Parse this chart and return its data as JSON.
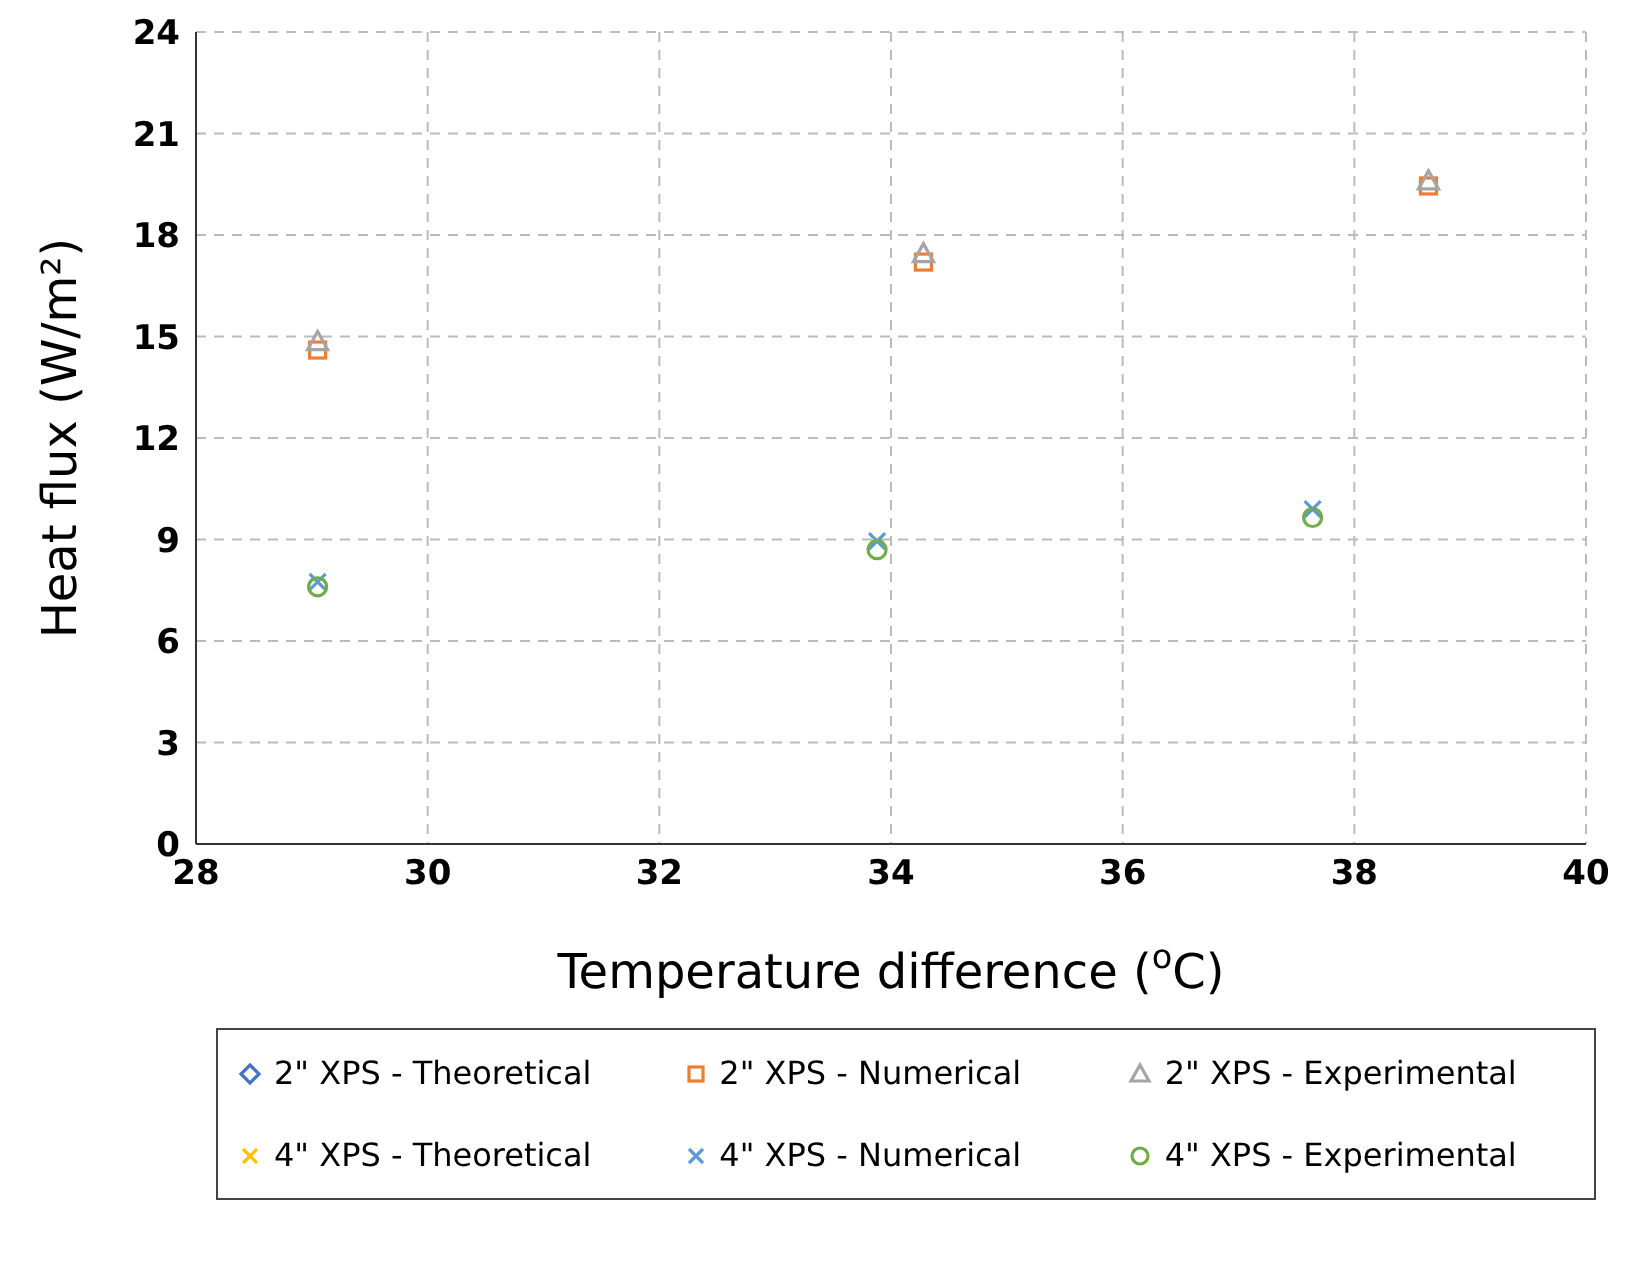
{
  "chart_data": {
    "type": "scatter",
    "xlabel": "Temperature difference ($^{o}$C)",
    "ylabel": "Heat flux (W/m²)",
    "xlim": [
      28,
      40
    ],
    "xticks": [
      28,
      30,
      32,
      34,
      36,
      38,
      40
    ],
    "ylim": [
      0,
      24
    ],
    "yticks": [
      0,
      3,
      6,
      9,
      12,
      15,
      18,
      21,
      24
    ],
    "grid": true,
    "legend": "bottom",
    "x": [
      29.05,
      34.28,
      38.64
    ],
    "series": [
      {
        "name": "2\" XPS - Theoretical",
        "color": "#4472c4",
        "marker": "diamond",
        "values": [
          null,
          null,
          null
        ]
      },
      {
        "name": "2\" XPS - Numerical",
        "color": "#ed7d31",
        "marker": "square",
        "values": [
          14.6,
          17.2,
          19.45
        ]
      },
      {
        "name": "2\" XPS - Experimental",
        "color": "#a5a5a5",
        "marker": "triangle",
        "values": [
          14.85,
          17.45,
          19.6
        ]
      },
      {
        "name": "4\" XPS - Theoretical",
        "color": "#ffc000",
        "marker": "cross",
        "values": [
          null,
          null,
          null
        ]
      },
      {
        "name": "4\" XPS - Numerical",
        "color": "#5b9bd5",
        "marker": "cross",
        "x": [
          29.05,
          33.88,
          37.64
        ],
        "values": [
          7.75,
          8.95,
          9.9
        ]
      },
      {
        "name": "4\" XPS - Experimental",
        "color": "#70ad47",
        "marker": "circle",
        "x": [
          29.05,
          33.88,
          37.64
        ],
        "values": [
          7.6,
          8.7,
          9.65
        ]
      }
    ]
  }
}
